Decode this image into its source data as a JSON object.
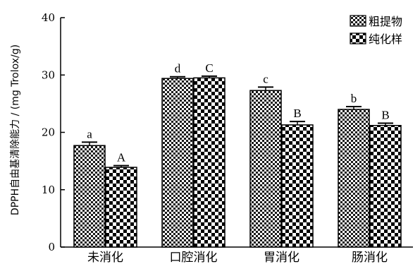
{
  "chart_data": {
    "type": "bar",
    "ylabel": "DPPH自由基清除能力 / (mg Trolox/g)",
    "xlabel": "",
    "ylim": [
      0,
      40
    ],
    "yticks": [
      0,
      10,
      20,
      30,
      40
    ],
    "categories": [
      "未消化",
      "口腔消化",
      "胃消化",
      "肠消化"
    ],
    "legend_position": "top-right",
    "series": [
      {
        "name": "粗提物",
        "values": [
          17.7,
          29.4,
          27.3,
          24.0
        ],
        "errors": [
          0.6,
          0.3,
          0.6,
          0.5
        ],
        "labels": [
          "a",
          "d",
          "c",
          "b"
        ],
        "pattern": "checker-fine"
      },
      {
        "name": "纯化样",
        "values": [
          13.9,
          29.5,
          21.3,
          21.2
        ],
        "errors": [
          0.3,
          0.3,
          0.6,
          0.4
        ],
        "labels": [
          "A",
          "C",
          "B",
          "B"
        ],
        "pattern": "checker-coarse"
      }
    ]
  }
}
